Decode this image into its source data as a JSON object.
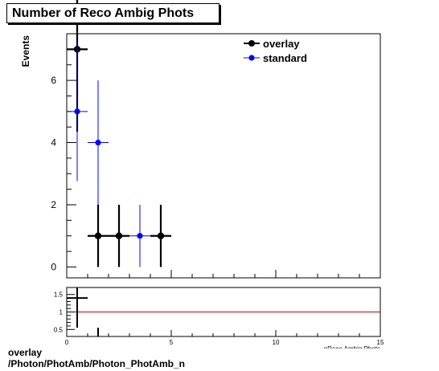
{
  "title": "Number of Reco Ambig Phots",
  "footer": {
    "line1": "overlay",
    "line2": "/Photon/PhotAmb/Photon_PhotAmb_n"
  },
  "chart_data": [
    {
      "type": "scatter",
      "title": "Number of Reco Ambig Phots",
      "xlabel": "nReco Ambig Phots",
      "ylabel": "Events",
      "xlim": [
        0,
        15
      ],
      "ylim": [
        -0.35,
        7.5
      ],
      "yticks": [
        0,
        2,
        4,
        6
      ],
      "xticks": [
        0,
        5,
        10,
        15
      ],
      "legend": "top-right",
      "series": [
        {
          "name": "overlay",
          "color": "#000000",
          "points": [
            {
              "x": 0.5,
              "y": 7,
              "xerr": 0.5,
              "yerr": 2.65
            },
            {
              "x": 1.5,
              "y": 1,
              "xerr": 0.5,
              "yerr": 1
            },
            {
              "x": 2.5,
              "y": 1,
              "xerr": 0.5,
              "yerr": 1
            },
            {
              "x": 4.5,
              "y": 1,
              "xerr": 0.5,
              "yerr": 1
            }
          ]
        },
        {
          "name": "standard",
          "color": "#0000ff",
          "points": [
            {
              "x": 0.5,
              "y": 5,
              "xerr": 0.5,
              "yerr": 2.24
            },
            {
              "x": 1.5,
              "y": 4,
              "xerr": 0.5,
              "yerr": 2
            },
            {
              "x": 3.5,
              "y": 1,
              "xerr": 0.5,
              "yerr": 1
            }
          ]
        }
      ]
    },
    {
      "type": "scatter",
      "title": "",
      "xlabel": "nReco Ambig Phots",
      "ylabel": "",
      "xlim": [
        0,
        15
      ],
      "ylim": [
        0.3,
        1.7
      ],
      "yticks": [
        0.5,
        1,
        1.5
      ],
      "xticks": [
        0,
        5,
        10,
        15
      ],
      "reference_line": {
        "y": 1,
        "color": "#cc0000"
      },
      "series": [
        {
          "name": "",
          "color": "#000000",
          "points": [
            {
              "x": 0.5,
              "y": 1.4,
              "xerr": 0.5,
              "yerr_low": 0.85,
              "yerr_high": 0.3
            },
            {
              "x": 1.5,
              "y": 0.25,
              "xerr": 0,
              "yerr_low": 0,
              "yerr_high": 0.3
            }
          ]
        }
      ]
    }
  ]
}
